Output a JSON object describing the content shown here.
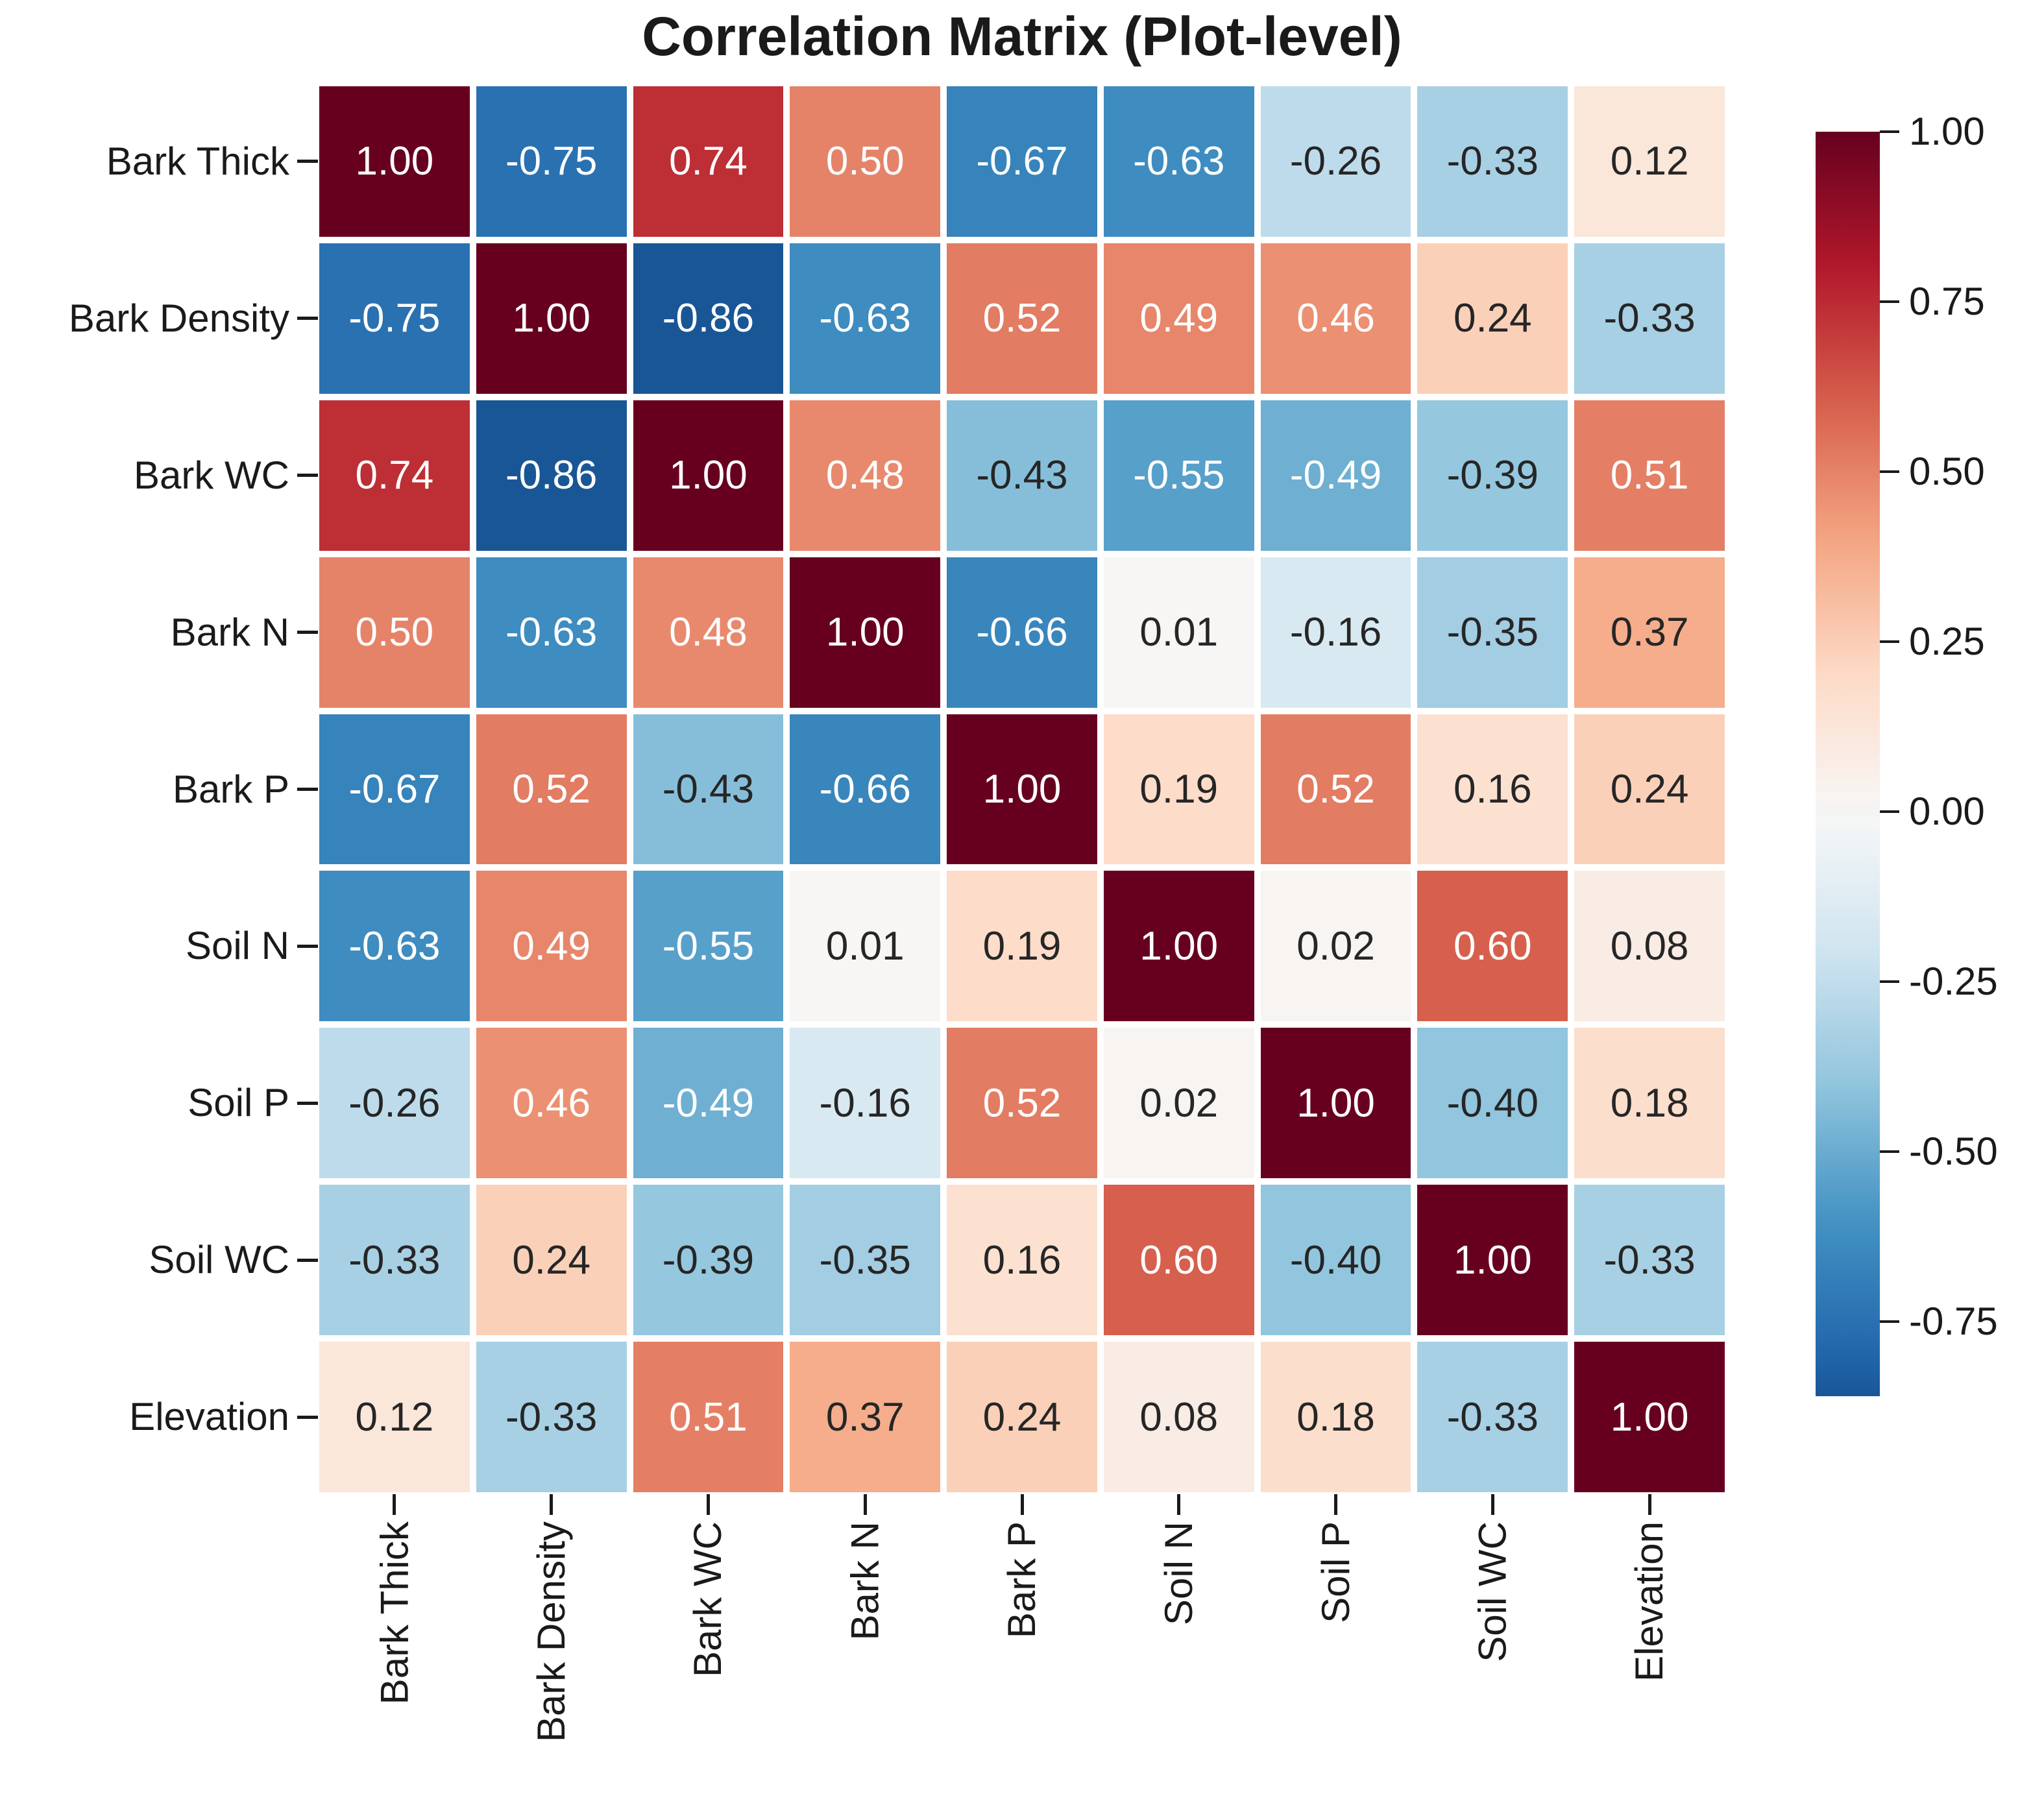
{
  "title": "Correlation Matrix (Plot-level)",
  "chart_data": {
    "type": "heatmap",
    "title": "Correlation Matrix (Plot-level)",
    "categories": [
      "Bark Thick",
      "Bark Density",
      "Bark WC",
      "Bark N",
      "Bark P",
      "Soil N",
      "Soil P",
      "Soil WC",
      "Elevation"
    ],
    "x_labels": [
      "Bark Thick",
      "Bark Density",
      "Bark WC",
      "Bark N",
      "Bark P",
      "Soil N",
      "Soil P",
      "Soil WC",
      "Elevation"
    ],
    "y_labels": [
      "Bark Thick",
      "Bark Density",
      "Bark WC",
      "Bark N",
      "Bark P",
      "Soil N",
      "Soil P",
      "Soil WC",
      "Elevation"
    ],
    "matrix": [
      [
        1.0,
        -0.75,
        0.74,
        0.5,
        -0.67,
        -0.63,
        -0.26,
        -0.33,
        0.12
      ],
      [
        -0.75,
        1.0,
        -0.86,
        -0.63,
        0.52,
        0.49,
        0.46,
        0.24,
        -0.33
      ],
      [
        0.74,
        -0.86,
        1.0,
        0.48,
        -0.43,
        -0.55,
        -0.49,
        -0.39,
        0.51
      ],
      [
        0.5,
        -0.63,
        0.48,
        1.0,
        -0.66,
        0.01,
        -0.16,
        -0.35,
        0.37
      ],
      [
        -0.67,
        0.52,
        -0.43,
        -0.66,
        1.0,
        0.19,
        0.52,
        0.16,
        0.24
      ],
      [
        -0.63,
        0.49,
        -0.55,
        0.01,
        0.19,
        1.0,
        0.02,
        0.6,
        0.08
      ],
      [
        -0.26,
        0.46,
        -0.49,
        -0.16,
        0.52,
        0.02,
        1.0,
        -0.4,
        0.18
      ],
      [
        -0.33,
        0.24,
        -0.39,
        -0.35,
        0.16,
        0.6,
        -0.4,
        1.0,
        -0.33
      ],
      [
        0.12,
        -0.33,
        0.51,
        0.37,
        0.24,
        0.08,
        0.18,
        -0.33,
        1.0
      ]
    ],
    "value_format_decimals": 2,
    "grid_line_color": "#ffffff",
    "colormap": {
      "name": "RdBu_r",
      "anchors": [
        "#053061",
        "#2166ac",
        "#4393c3",
        "#92c5de",
        "#d1e5f0",
        "#f7f7f7",
        "#fddbc7",
        "#f4a582",
        "#d6604d",
        "#b2182b",
        "#67001f"
      ],
      "vmin": -1.0,
      "vmax": 1.0
    },
    "annotation_colors": {
      "on_dark": "#ffffff",
      "on_light": "#262626",
      "luminance_threshold": 0.408
    },
    "colorbar": {
      "display_max": 1.0,
      "display_min": -0.86,
      "tick_values": [
        1.0,
        0.75,
        0.5,
        0.25,
        0.0,
        -0.25,
        -0.5,
        -0.75
      ],
      "tick_labels": [
        "1.00",
        "0.75",
        "0.50",
        "0.25",
        "0.00",
        "-0.25",
        "-0.50",
        "-0.75"
      ],
      "legend_position": "right"
    }
  }
}
